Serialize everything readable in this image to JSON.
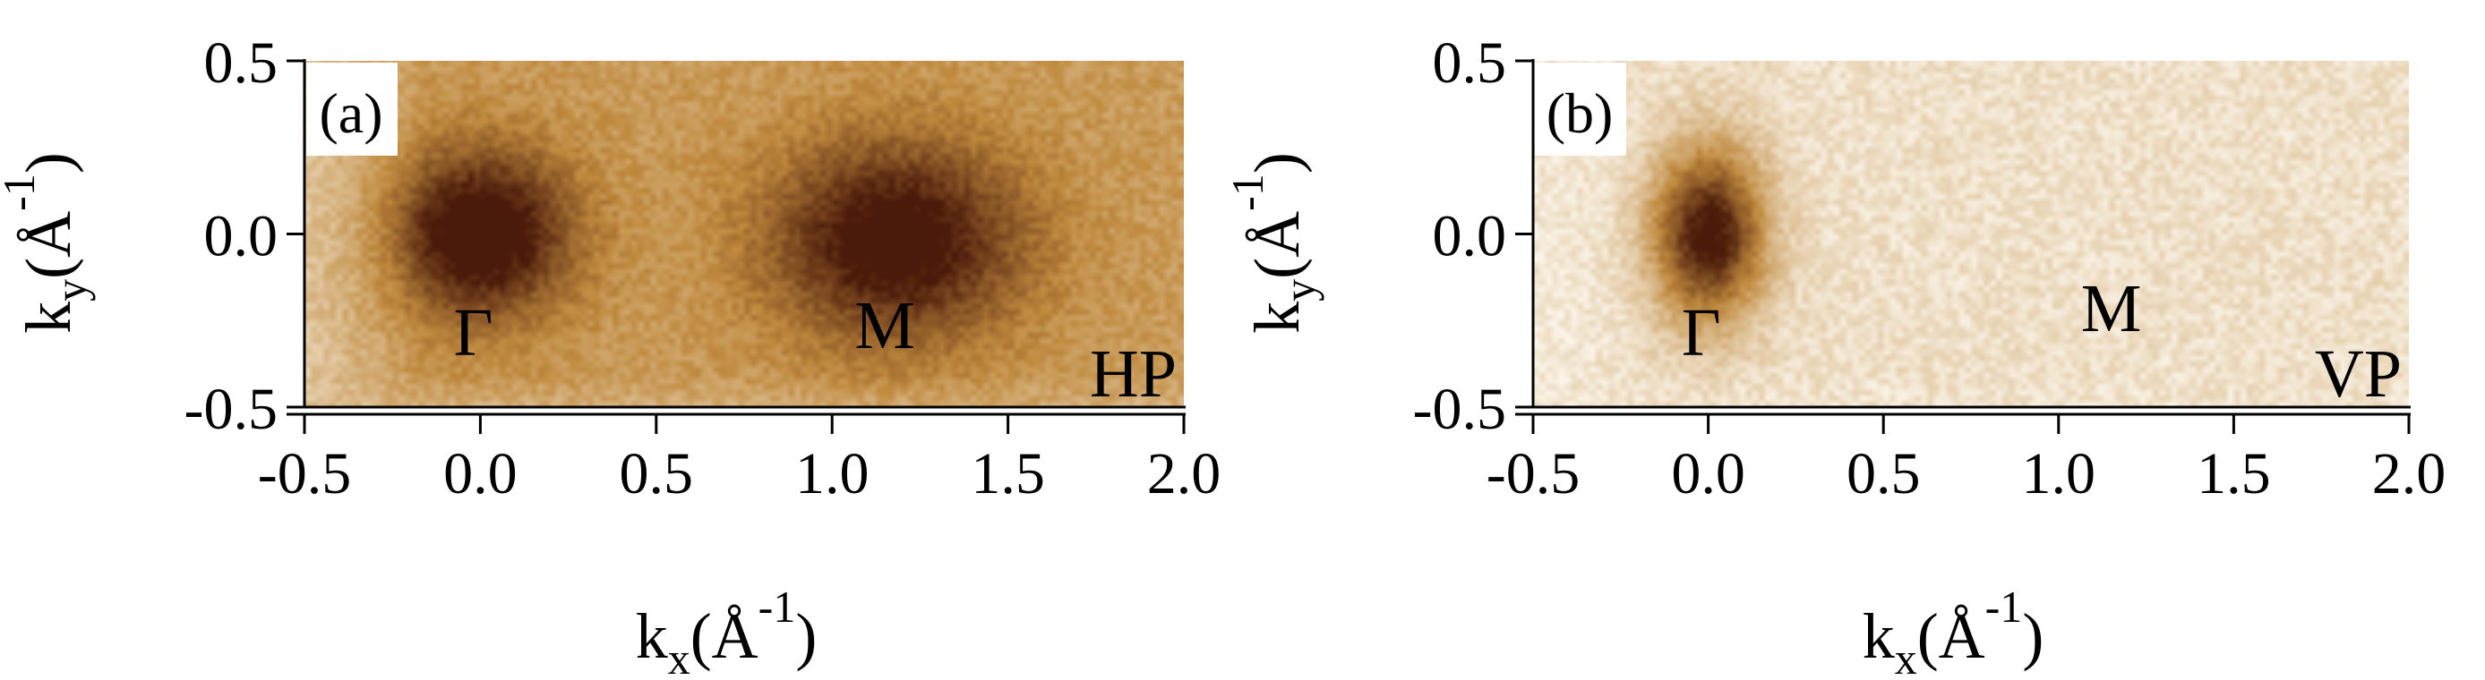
{
  "figure": {
    "colors": {
      "background": "#ffffff",
      "map_light": "#fbf5ea",
      "map_mid": "#c08a3e",
      "map_dark": "#4a1a0a",
      "axis": "#000000"
    }
  },
  "chart_data": [
    {
      "type": "heatmap",
      "panel_label": "(a)",
      "polarization": "HP",
      "xlabel": {
        "base": "k",
        "sub": "x",
        "unit": "(Å",
        "sup": "-1",
        "close": ")"
      },
      "ylabel": {
        "base": "k",
        "sub": "y",
        "unit": "(Å",
        "sup": "-1",
        "close": ")"
      },
      "xlim": [
        -0.5,
        2.0
      ],
      "ylim": [
        -0.5,
        0.5
      ],
      "x_ticks": [
        -0.5,
        0.0,
        0.5,
        1.0,
        1.5,
        2.0
      ],
      "x_tick_labels": [
        "-0.5",
        "0.0",
        "0.5",
        "1.0",
        "1.5",
        "2.0"
      ],
      "y_ticks": [
        0.5,
        0.0,
        -0.5
      ],
      "y_tick_labels": [
        "0.5",
        "0.0",
        "-0.5"
      ],
      "colormap": "white-to-dark-brown",
      "base_intensity": 0.42,
      "intensity_peaks": [
        {
          "label": "Γ",
          "x": 0.0,
          "y": 0.0,
          "amplitude": 0.75,
          "sigma_x": 0.18,
          "sigma_y": 0.17
        },
        {
          "label": "M",
          "x": 1.18,
          "y": -0.02,
          "amplitude": 0.7,
          "sigma_x": 0.25,
          "sigma_y": 0.2
        }
      ],
      "point_labels": [
        {
          "text": "Γ",
          "x": -0.02,
          "y": -0.35
        },
        {
          "text": "M",
          "x": 1.15,
          "y": -0.33
        }
      ]
    },
    {
      "type": "heatmap",
      "panel_label": "(b)",
      "polarization": "VP",
      "xlabel": {
        "base": "k",
        "sub": "x",
        "unit": "(Å",
        "sup": "-1",
        "close": ")"
      },
      "ylabel": {
        "base": "k",
        "sub": "y",
        "unit": "(Å",
        "sup": "-1",
        "close": ")"
      },
      "xlim": [
        -0.5,
        2.0
      ],
      "ylim": [
        -0.5,
        0.5
      ],
      "x_ticks": [
        -0.5,
        0.0,
        0.5,
        1.0,
        1.5,
        2.0
      ],
      "x_tick_labels": [
        "-0.5",
        "0.0",
        "0.5",
        "1.0",
        "1.5",
        "2.0"
      ],
      "y_ticks": [
        0.5,
        0.0,
        -0.5
      ],
      "y_tick_labels": [
        "0.5",
        "0.0",
        "-0.5"
      ],
      "colormap": "white-to-dark-brown",
      "base_intensity": 0.1,
      "intensity_peaks": [
        {
          "label": "Γ",
          "x": 0.0,
          "y": 0.0,
          "amplitude": 0.95,
          "sigma_x": 0.11,
          "sigma_y": 0.17
        }
      ],
      "point_labels": [
        {
          "text": "Γ",
          "x": -0.02,
          "y": -0.35
        },
        {
          "text": "M",
          "x": 1.15,
          "y": -0.28
        }
      ]
    }
  ]
}
